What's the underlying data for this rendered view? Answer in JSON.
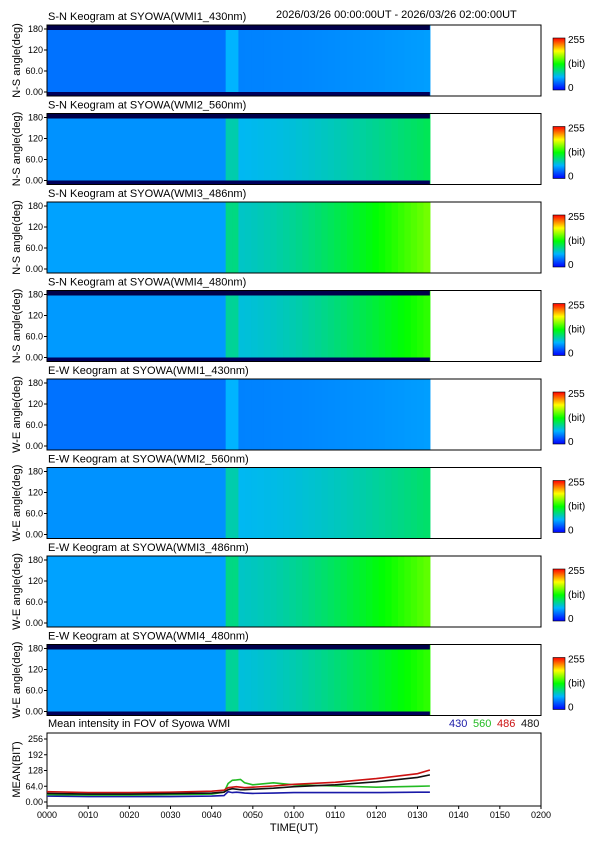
{
  "header": {
    "time_range": "2026/03/26 00:00:00UT - 2026/03/26 02:00:00UT"
  },
  "colorbar": {
    "max_label": "255",
    "unit_label": "(bit)",
    "min_label": "0"
  },
  "y_ticks": [
    "180",
    "120",
    "60.0",
    "0.00"
  ],
  "keogram_panels": [
    {
      "title": "S-N Keogram at SYOWA(WMI1_430nm)",
      "ylabel": "N-S angle(deg)"
    },
    {
      "title": "S-N Keogram at SYOWA(WMI2_560nm)",
      "ylabel": "N-S angle(deg)"
    },
    {
      "title": "S-N Keogram at SYOWA(WMI3_486nm)",
      "ylabel": "N-S angle(deg)"
    },
    {
      "title": "S-N Keogram at SYOWA(WMI4_480nm)",
      "ylabel": "N-S angle(deg)"
    },
    {
      "title": "E-W Keogram at SYOWA(WMI1_430nm)",
      "ylabel": "W-E angle(deg)"
    },
    {
      "title": "E-W Keogram at SYOWA(WMI2_560nm)",
      "ylabel": "W-E angle(deg)"
    },
    {
      "title": "E-W Keogram at SYOWA(WMI3_486nm)",
      "ylabel": "W-E angle(deg)"
    },
    {
      "title": "E-W Keogram at SYOWA(WMI4_480nm)",
      "ylabel": "W-E angle(deg)"
    }
  ],
  "mean_panel": {
    "title": "Mean intensity in FOV of Syowa WMI",
    "legend": [
      {
        "label": "430",
        "color": "#1a1aa8"
      },
      {
        "label": "560",
        "color": "#22bb22"
      },
      {
        "label": "486",
        "color": "#cc1111"
      },
      {
        "label": "480",
        "color": "#111111"
      }
    ]
  },
  "chart_data": {
    "type": "line",
    "title": "Mean intensity in FOV of Syowa WMI",
    "xlabel": "TIME(UT)",
    "ylabel": "MEAN(BIT)",
    "x_tick_labels": [
      "0000",
      "0010",
      "0020",
      "0030",
      "0040",
      "0050",
      "0100",
      "0110",
      "0120",
      "0130",
      "0140",
      "0150",
      "0200"
    ],
    "y_tick_labels": [
      "256",
      "192",
      "128",
      "64.0",
      "0.00"
    ],
    "xlim": [
      0,
      120
    ],
    "ylim": [
      0,
      256
    ],
    "x": [
      0,
      10,
      20,
      30,
      40,
      43,
      44,
      45,
      46,
      47,
      48,
      50,
      55,
      60,
      70,
      80,
      90,
      93
    ],
    "series": [
      {
        "name": "430",
        "color": "#1a1aa8",
        "values": [
          24,
          22,
          22,
          22,
          24,
          26,
          42,
          38,
          40,
          38,
          36,
          35,
          36,
          38,
          38,
          38,
          40,
          40
        ]
      },
      {
        "name": "560",
        "color": "#22bb22",
        "values": [
          30,
          28,
          28,
          30,
          32,
          40,
          75,
          88,
          90,
          92,
          78,
          70,
          78,
          70,
          65,
          60,
          64,
          65
        ]
      },
      {
        "name": "486",
        "color": "#cc1111",
        "values": [
          42,
          38,
          38,
          40,
          44,
          48,
          58,
          60,
          62,
          60,
          58,
          60,
          65,
          72,
          80,
          95,
          115,
          130
        ]
      },
      {
        "name": "480",
        "color": "#111111",
        "values": [
          35,
          32,
          32,
          34,
          36,
          40,
          50,
          54,
          52,
          50,
          50,
          52,
          56,
          62,
          70,
          82,
          100,
          110
        ]
      }
    ],
    "heatmaps": [
      {
        "panel": "S-N Keogram at SYOWA(WMI1_430nm)",
        "data_end_time": 93,
        "base_level": 0.18,
        "late_level": 0.22,
        "top_saturated": true
      },
      {
        "panel": "S-N Keogram at SYOWA(WMI2_560nm)",
        "data_end_time": 93,
        "base_level": 0.26,
        "late_level": 0.42,
        "top_saturated": true
      },
      {
        "panel": "S-N Keogram at SYOWA(WMI3_486nm)",
        "data_end_time": 93,
        "base_level": 0.3,
        "late_level": 0.62,
        "top_saturated": false
      },
      {
        "panel": "S-N Keogram at SYOWA(WMI4_480nm)",
        "data_end_time": 93,
        "base_level": 0.28,
        "late_level": 0.55,
        "top_saturated": true
      },
      {
        "panel": "E-W Keogram at SYOWA(WMI1_430nm)",
        "data_end_time": 93,
        "base_level": 0.18,
        "late_level": 0.22,
        "top_saturated": false
      },
      {
        "panel": "E-W Keogram at SYOWA(WMI2_560nm)",
        "data_end_time": 93,
        "base_level": 0.26,
        "late_level": 0.4,
        "top_saturated": false
      },
      {
        "panel": "E-W Keogram at SYOWA(WMI3_486nm)",
        "data_end_time": 93,
        "base_level": 0.3,
        "late_level": 0.6,
        "top_saturated": false
      },
      {
        "panel": "E-W Keogram at SYOWA(WMI4_480nm)",
        "data_end_time": 93,
        "base_level": 0.28,
        "late_level": 0.55,
        "top_saturated": true
      }
    ]
  }
}
